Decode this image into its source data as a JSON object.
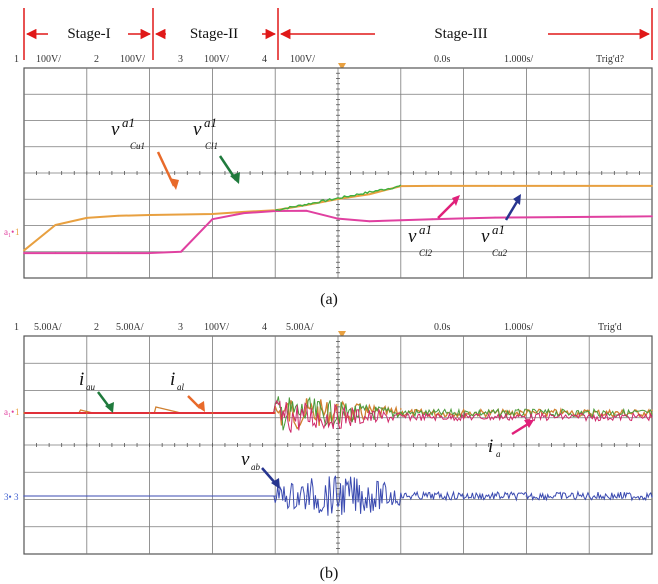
{
  "chart_data": [
    {
      "type": "line",
      "caption": "(a)",
      "stages": [
        "Stage-I",
        "Stage-II",
        "Stage-III"
      ],
      "channel_header": [
        {
          "num": "1",
          "scale": "100V/",
          "color": "#e8a040"
        },
        {
          "num": "2",
          "scale": "100V/",
          "color": "#40b040"
        },
        {
          "num": "3",
          "scale": "100V/",
          "color": "#4060d0"
        },
        {
          "num": "4",
          "scale": "100V/",
          "color": "#e040a0"
        }
      ],
      "time_header": [
        "0.0s",
        "1.000s/",
        "Trig'd?"
      ],
      "x": [
        0,
        0.5,
        1,
        1.5,
        2,
        2.5,
        3,
        3.5,
        4,
        4.5,
        5,
        5.5,
        6,
        6.5,
        7,
        7.5,
        8,
        8.5,
        9,
        9.5,
        10
      ],
      "series": [
        {
          "color": "#e8a040",
          "values": [
            1.05,
            2.02,
            2.29,
            2.37,
            2.4,
            2.42,
            2.44,
            2.52,
            2.58,
            2.78,
            3.01,
            3.19,
            3.5,
            3.51,
            3.51,
            3.51,
            3.51,
            3.51,
            3.51,
            3.51,
            3.51
          ]
        },
        {
          "color": "#e040a0",
          "values": [
            0.95,
            0.95,
            0.95,
            0.95,
            0.95,
            1.0,
            2.24,
            2.47,
            2.55,
            2.56,
            2.26,
            2.16,
            2.2,
            2.24,
            2.27,
            2.3,
            2.31,
            2.32,
            2.33,
            2.34,
            2.35
          ]
        }
      ],
      "annotations": [
        {
          "base": "v",
          "sup": "a1",
          "sub": "Cu1",
          "color": "#e86a2a"
        },
        {
          "base": "v",
          "sup": "a1",
          "sub": "Cl1",
          "color": "#1f7a3c"
        },
        {
          "base": "v",
          "sup": "a1",
          "sub": "Cl2",
          "color": "#e0207a"
        },
        {
          "base": "v",
          "sup": "a1",
          "sub": "Cu2",
          "color": "#27358f"
        }
      ]
    },
    {
      "type": "line",
      "caption": "(b)",
      "channel_header": [
        {
          "num": "1",
          "scale": "5.00A/",
          "color": "#e8a040"
        },
        {
          "num": "2",
          "scale": "5.00A/",
          "color": "#40b040"
        },
        {
          "num": "3",
          "scale": "100V/",
          "color": "#4060d0"
        },
        {
          "num": "4",
          "scale": "5.00A/",
          "color": "#e040a0"
        }
      ],
      "time_header": [
        "0.0s",
        "1.000s/",
        "Trig'd"
      ],
      "x": [
        0,
        1,
        2,
        3,
        4,
        4.5,
        5,
        6,
        7,
        8,
        9,
        10
      ],
      "series": [
        {
          "color": "#d08030",
          "values": [
            0,
            0,
            0,
            0,
            0,
            0.5,
            0.3,
            0.15,
            0.1,
            0.1,
            0.1,
            0.1
          ]
        },
        {
          "color": "#4a5ab8",
          "values": [
            0,
            0,
            0,
            0,
            0,
            0,
            0,
            0,
            0,
            0,
            0,
            0
          ]
        }
      ],
      "annotations": [
        {
          "base": "i",
          "sub": "au",
          "color": "#1f7a3c"
        },
        {
          "base": "i",
          "sub": "al",
          "color": "#e86a2a"
        },
        {
          "base": "v",
          "sub": "ab",
          "color": "#27358f"
        },
        {
          "base": "i",
          "sub": "a",
          "color": "#e0207a"
        }
      ]
    }
  ]
}
